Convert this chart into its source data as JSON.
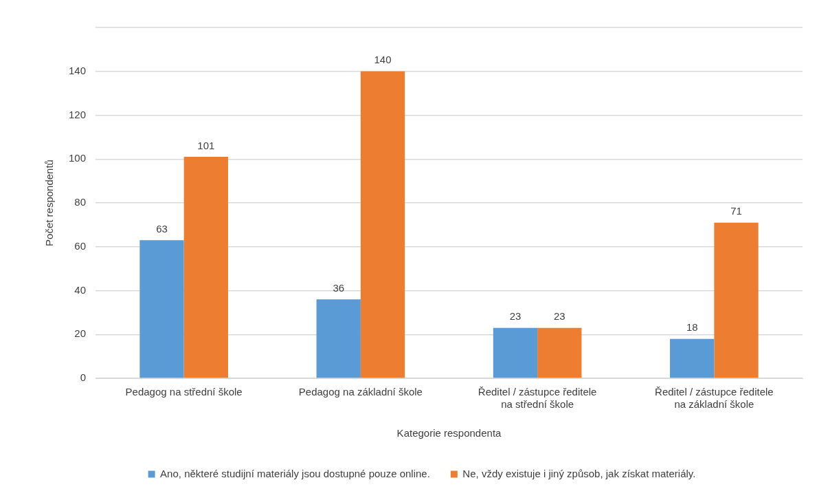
{
  "chart_data": {
    "type": "bar",
    "xlabel": "Kategorie respondenta",
    "ylabel": "Počet respondentů",
    "categories": [
      "Pedagog na střední škole",
      "Pedagog na základní škole",
      "Ředitel / zástupce ředitele\nna střední škole",
      "Ředitel / zástupce ředitele\nna základní škole"
    ],
    "series": [
      {
        "name": "Ano, některé studijní materiály jsou dostupné pouze online.",
        "color": "#5b9bd5",
        "values": [
          63,
          36,
          23,
          18
        ]
      },
      {
        "name": "Ne, vždy existuje i jiný způsob, jak získat materiály.",
        "color": "#ed7d31",
        "values": [
          101,
          140,
          23,
          71
        ]
      }
    ],
    "ylim": [
      0,
      160
    ],
    "yticks": [
      0,
      20,
      40,
      60,
      80,
      100,
      120,
      140,
      {
        "value": 160,
        "label": null
      }
    ],
    "grid": "y",
    "legend": "bottom",
    "data_labels": true
  }
}
